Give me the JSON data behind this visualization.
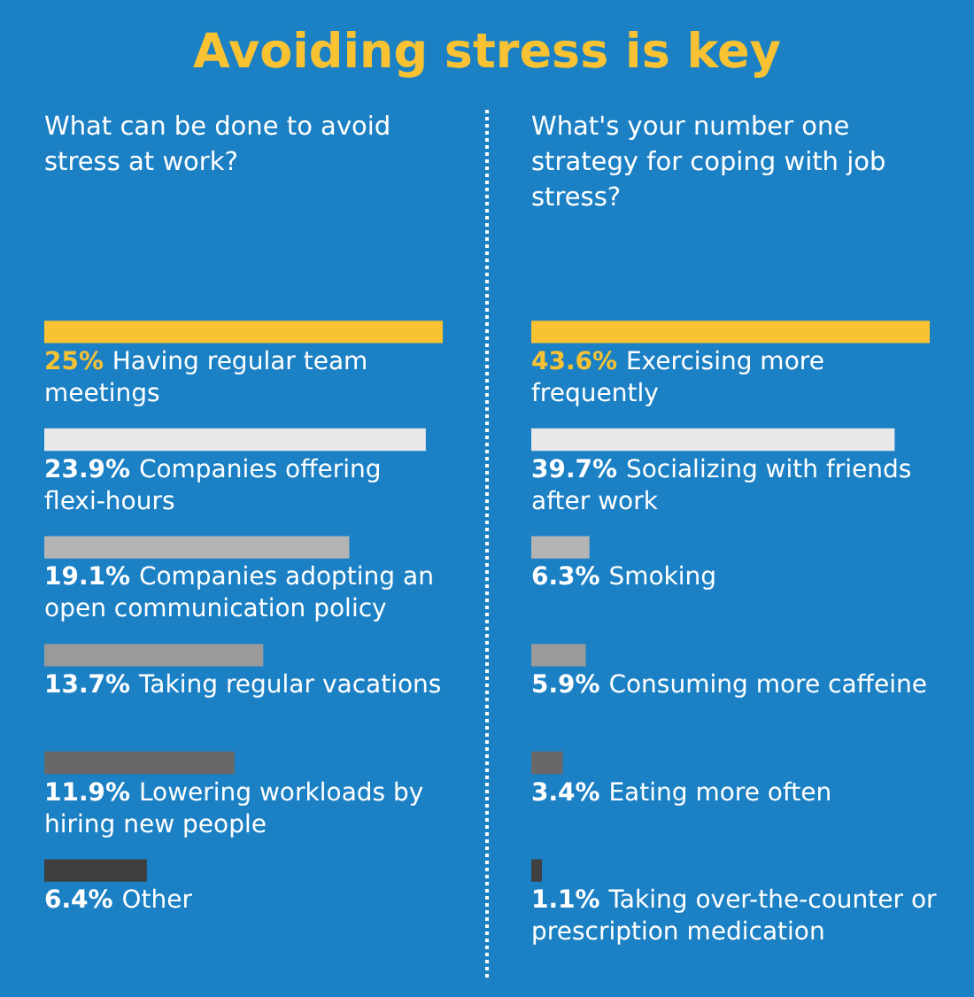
{
  "chart_data": [
    {
      "type": "bar",
      "orientation": "horizontal",
      "title": "Avoiding stress is key",
      "subtitle": "What can be done to avoid stress at work?",
      "categories": [
        "Having regular team meetings",
        "Companies offering flexi-hours",
        "Companies adopting an open communication policy",
        "Taking regular vacations",
        "Lowering workloads by hiring new people",
        "Other"
      ],
      "values": [
        25,
        23.9,
        19.1,
        13.7,
        11.9,
        6.4
      ],
      "colors": [
        "#f9c233",
        "#e8e8e8",
        "#b4b4b4",
        "#9a9a9a",
        "#686868",
        "#3f3f3f"
      ],
      "value_labels": [
        "25%",
        "23.9%",
        "19.1%",
        "13.7%",
        "11.9%",
        "6.4%"
      ],
      "xlim": [
        0,
        25
      ],
      "tick_labels": false,
      "legend": false
    },
    {
      "type": "bar",
      "orientation": "horizontal",
      "subtitle": "What's your number one strategy for coping with job stress?",
      "categories": [
        "Exercising more frequently",
        "Socializing with friends after work",
        "Smoking",
        "Consuming more caffeine",
        "Eating more often",
        "Taking over-the-counter or prescription medication"
      ],
      "values": [
        43.6,
        39.7,
        6.3,
        5.9,
        3.4,
        1.1
      ],
      "colors": [
        "#f9c233",
        "#e8e8e8",
        "#b4b4b4",
        "#9a9a9a",
        "#686868",
        "#3f3f3f"
      ],
      "value_labels": [
        "43.6%",
        "39.7%",
        "6.3%",
        "5.9%",
        "3.4%",
        "1.1%"
      ],
      "xlim": [
        0,
        43.6
      ],
      "tick_labels": false,
      "legend": false
    }
  ]
}
